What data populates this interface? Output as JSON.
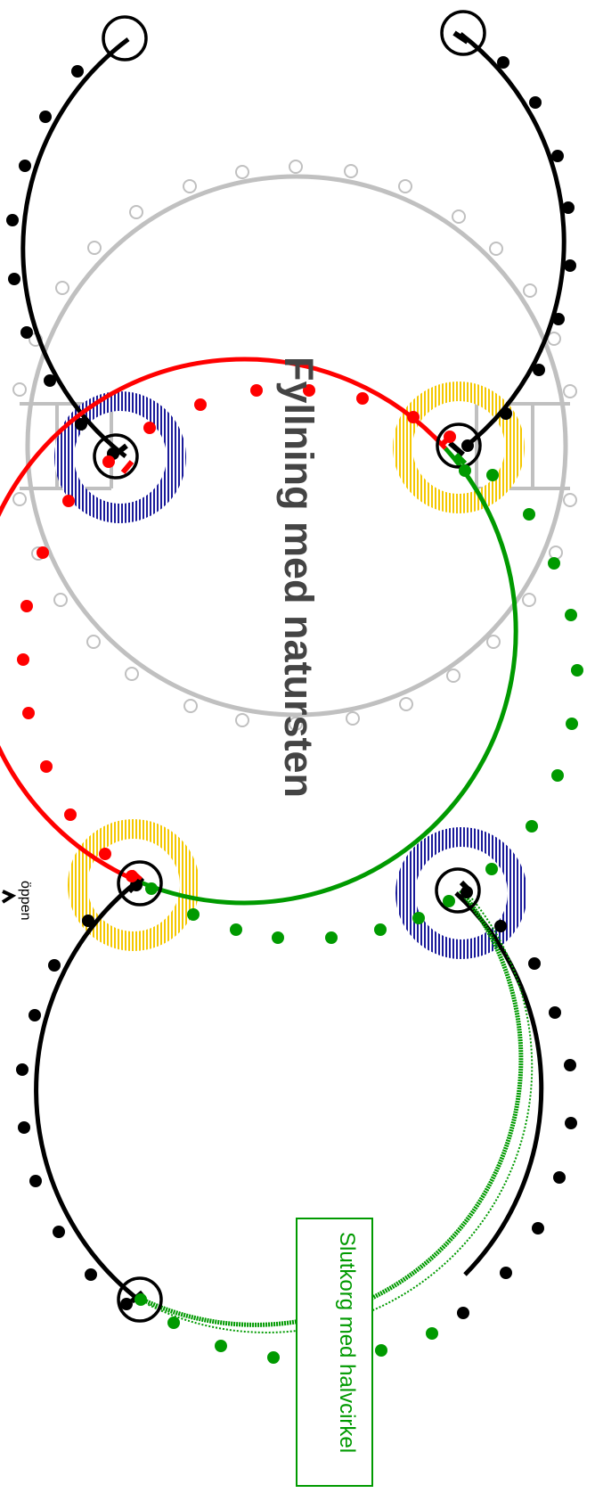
{
  "title": "Fyllning med natursten",
  "label_box": "Slutkorg med halvcirkel",
  "open_label": "öppen",
  "colors": {
    "black": "#000000",
    "red": "#ff0000",
    "green": "#009a00",
    "gray": "#c0c0c0",
    "blue": "#1a1a9a",
    "yellow": "#f5c800",
    "title_gray": "#444444"
  }
}
